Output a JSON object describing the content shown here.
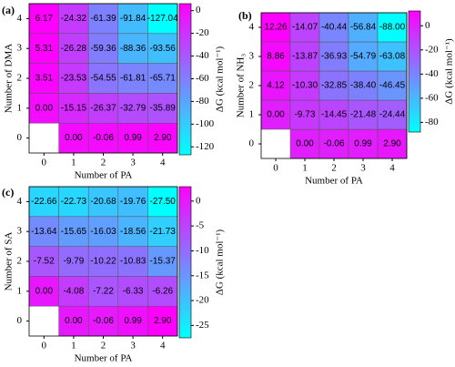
{
  "chart_data": [
    {
      "type": "heatmap",
      "panel_label": "(a)",
      "xlabel": "Number of PA",
      "ylabel": "Number of DMA",
      "colorbar_label": "ΔG (kcal mol⁻¹)",
      "x": [
        0,
        1,
        2,
        3,
        4
      ],
      "y": [
        0,
        1,
        2,
        3,
        4
      ],
      "values": [
        [
          null,
          0.0,
          -0.06,
          0.99,
          2.9
        ],
        [
          0.0,
          -15.15,
          -26.37,
          -32.79,
          -35.89
        ],
        [
          3.51,
          -23.53,
          -54.55,
          -61.81,
          -65.71
        ],
        [
          5.31,
          -26.28,
          -59.36,
          -88.36,
          -93.56
        ],
        [
          6.17,
          -24.32,
          -61.39,
          -91.84,
          -127.04
        ]
      ],
      "value_labels": [
        [
          null,
          "0.00",
          "-0.06",
          "0.99",
          "2.90"
        ],
        [
          "0.00",
          "-15.15",
          "-26.37",
          "-32.79",
          "-35.89"
        ],
        [
          "3.51",
          "-23.53",
          "-54.55",
          "-61.81",
          "-65.71"
        ],
        [
          "5.31",
          "-26.28",
          "-59.36",
          "-88.36",
          "-93.56"
        ],
        [
          "6.17",
          "-24.32",
          "-61.39",
          "-91.84",
          "-127.04"
        ]
      ],
      "clim": [
        -127.04,
        6.17
      ],
      "colorbar_ticks": [
        0,
        -20,
        -40,
        -60,
        -80,
        -100,
        -120
      ],
      "colormap": "cool"
    },
    {
      "type": "heatmap",
      "panel_label": "(b)",
      "xlabel": "Number of PA",
      "ylabel": "Number of NH₃",
      "colorbar_label": "ΔG (kcal mol⁻¹)",
      "x": [
        0,
        1,
        2,
        3,
        4
      ],
      "y": [
        0,
        1,
        2,
        3,
        4
      ],
      "values": [
        [
          null,
          0.0,
          -0.06,
          0.99,
          2.9
        ],
        [
          0.0,
          -9.73,
          -14.45,
          -21.48,
          -24.44
        ],
        [
          4.12,
          -10.3,
          -32.85,
          -38.4,
          -46.45
        ],
        [
          8.86,
          -13.87,
          -36.93,
          -54.79,
          -63.08
        ],
        [
          12.26,
          -14.07,
          -40.44,
          -56.84,
          -88.0
        ]
      ],
      "value_labels": [
        [
          null,
          "0.00",
          "-0.06",
          "0.99",
          "2.90"
        ],
        [
          "0.00",
          "-9.73",
          "-14.45",
          "-21.48",
          "-24.44"
        ],
        [
          "4.12",
          "-10.30",
          "-32.85",
          "-38.40",
          "-46.45"
        ],
        [
          "8.86",
          "-13.87",
          "-36.93",
          "-54.79",
          "-63.08"
        ],
        [
          "12.26",
          "-14.07",
          "-40.44",
          "-56.84",
          "-88.00"
        ]
      ],
      "clim": [
        -88.0,
        12.26
      ],
      "colorbar_ticks": [
        0,
        -20,
        -40,
        -60,
        -80
      ],
      "colormap": "cool"
    },
    {
      "type": "heatmap",
      "panel_label": "(c)",
      "xlabel": "Number of PA",
      "ylabel": "Number of SA",
      "colorbar_label": "ΔG (kcal mol⁻¹)",
      "x": [
        0,
        1,
        2,
        3,
        4
      ],
      "y": [
        0,
        1,
        2,
        3,
        4
      ],
      "values": [
        [
          null,
          0.0,
          -0.06,
          0.99,
          2.9
        ],
        [
          0.0,
          -4.08,
          -7.22,
          -6.33,
          -6.26
        ],
        [
          -7.52,
          -9.79,
          -10.22,
          -10.83,
          -15.37
        ],
        [
          -13.64,
          -15.65,
          -16.03,
          -18.56,
          -21.73
        ],
        [
          -22.66,
          -22.73,
          -20.68,
          -19.76,
          -27.5
        ]
      ],
      "value_labels": [
        [
          null,
          "0.00",
          "-0.06",
          "0.99",
          "2.90"
        ],
        [
          "0.00",
          "-4.08",
          "-7.22",
          "-6.33",
          "-6.26"
        ],
        [
          "-7.52",
          "-9.79",
          "-10.22",
          "-10.83",
          "-15.37"
        ],
        [
          "-13.64",
          "-15.65",
          "-16.03",
          "-18.56",
          "-21.73"
        ],
        [
          "-22.66",
          "-22.73",
          "-20.68",
          "-19.76",
          "-27.50"
        ]
      ],
      "clim": [
        -27.5,
        2.9
      ],
      "colorbar_ticks": [
        0,
        -5,
        -10,
        -15,
        -20,
        -25
      ],
      "colormap": "cool"
    }
  ]
}
